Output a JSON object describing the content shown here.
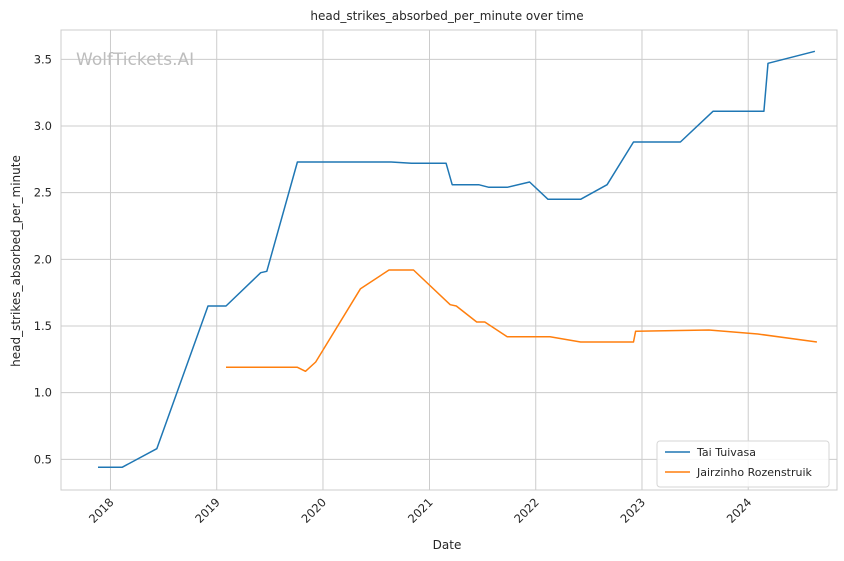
{
  "chart_data": {
    "type": "line",
    "title": "head_strikes_absorbed_per_minute over time",
    "xlabel": "Date",
    "ylabel": "head_strikes_absorbed_per_minute",
    "watermark": "WolfTickets.AI",
    "xlim": [
      "2017-07-15",
      "2024-11-01"
    ],
    "ylim": [
      0.27,
      3.72
    ],
    "x_ticks": [
      "2018-01-01",
      "2019-01-01",
      "2020-01-01",
      "2021-01-01",
      "2022-01-01",
      "2023-01-01",
      "2024-01-01"
    ],
    "x_tick_labels": [
      "2018",
      "2019",
      "2020",
      "2021",
      "2022",
      "2023",
      "2024"
    ],
    "y_ticks": [
      0.5,
      1.0,
      1.5,
      2.0,
      2.5,
      3.0,
      3.5
    ],
    "y_tick_labels": [
      "0.5",
      "1.0",
      "1.5",
      "2.0",
      "2.5",
      "3.0",
      "3.5"
    ],
    "grid": true,
    "legend_position": "lower right",
    "series": [
      {
        "name": "Tai Tuivasa",
        "color": "#1f77b4",
        "points": [
          [
            "2017-11-19",
            0.44
          ],
          [
            "2018-02-10",
            0.44
          ],
          [
            "2018-06-09",
            0.58
          ],
          [
            "2018-12-02",
            1.65
          ],
          [
            "2019-02-02",
            1.65
          ],
          [
            "2019-06-01",
            1.9
          ],
          [
            "2019-06-22",
            1.91
          ],
          [
            "2019-10-05",
            2.73
          ],
          [
            "2020-08-22",
            2.73
          ],
          [
            "2020-10-31",
            2.72
          ],
          [
            "2021-02-27",
            2.72
          ],
          [
            "2021-03-20",
            2.56
          ],
          [
            "2021-06-19",
            2.56
          ],
          [
            "2021-07-24",
            2.54
          ],
          [
            "2021-09-25",
            2.54
          ],
          [
            "2021-12-11",
            2.58
          ],
          [
            "2022-02-12",
            2.45
          ],
          [
            "2022-06-04",
            2.45
          ],
          [
            "2022-09-03",
            2.56
          ],
          [
            "2022-12-03",
            2.88
          ],
          [
            "2023-05-13",
            2.88
          ],
          [
            "2023-09-02",
            3.11
          ],
          [
            "2024-02-24",
            3.11
          ],
          [
            "2024-03-09",
            3.47
          ],
          [
            "2024-08-17",
            3.56
          ]
        ]
      },
      {
        "name": "Jairzinho Rozenstruik",
        "color": "#ff7f0e",
        "points": [
          [
            "2019-02-02",
            1.19
          ],
          [
            "2019-10-05",
            1.19
          ],
          [
            "2019-11-02",
            1.16
          ],
          [
            "2019-12-07",
            1.23
          ],
          [
            "2020-05-09",
            1.78
          ],
          [
            "2020-08-15",
            1.92
          ],
          [
            "2020-11-07",
            1.92
          ],
          [
            "2021-03-13",
            1.66
          ],
          [
            "2021-04-03",
            1.65
          ],
          [
            "2021-06-12",
            1.53
          ],
          [
            "2021-07-10",
            1.53
          ],
          [
            "2021-09-25",
            1.42
          ],
          [
            "2022-02-19",
            1.42
          ],
          [
            "2022-06-04",
            1.38
          ],
          [
            "2022-12-03",
            1.38
          ],
          [
            "2022-12-10",
            1.46
          ],
          [
            "2023-08-19",
            1.47
          ],
          [
            "2024-02-03",
            1.44
          ],
          [
            "2024-08-24",
            1.38
          ]
        ]
      }
    ]
  }
}
